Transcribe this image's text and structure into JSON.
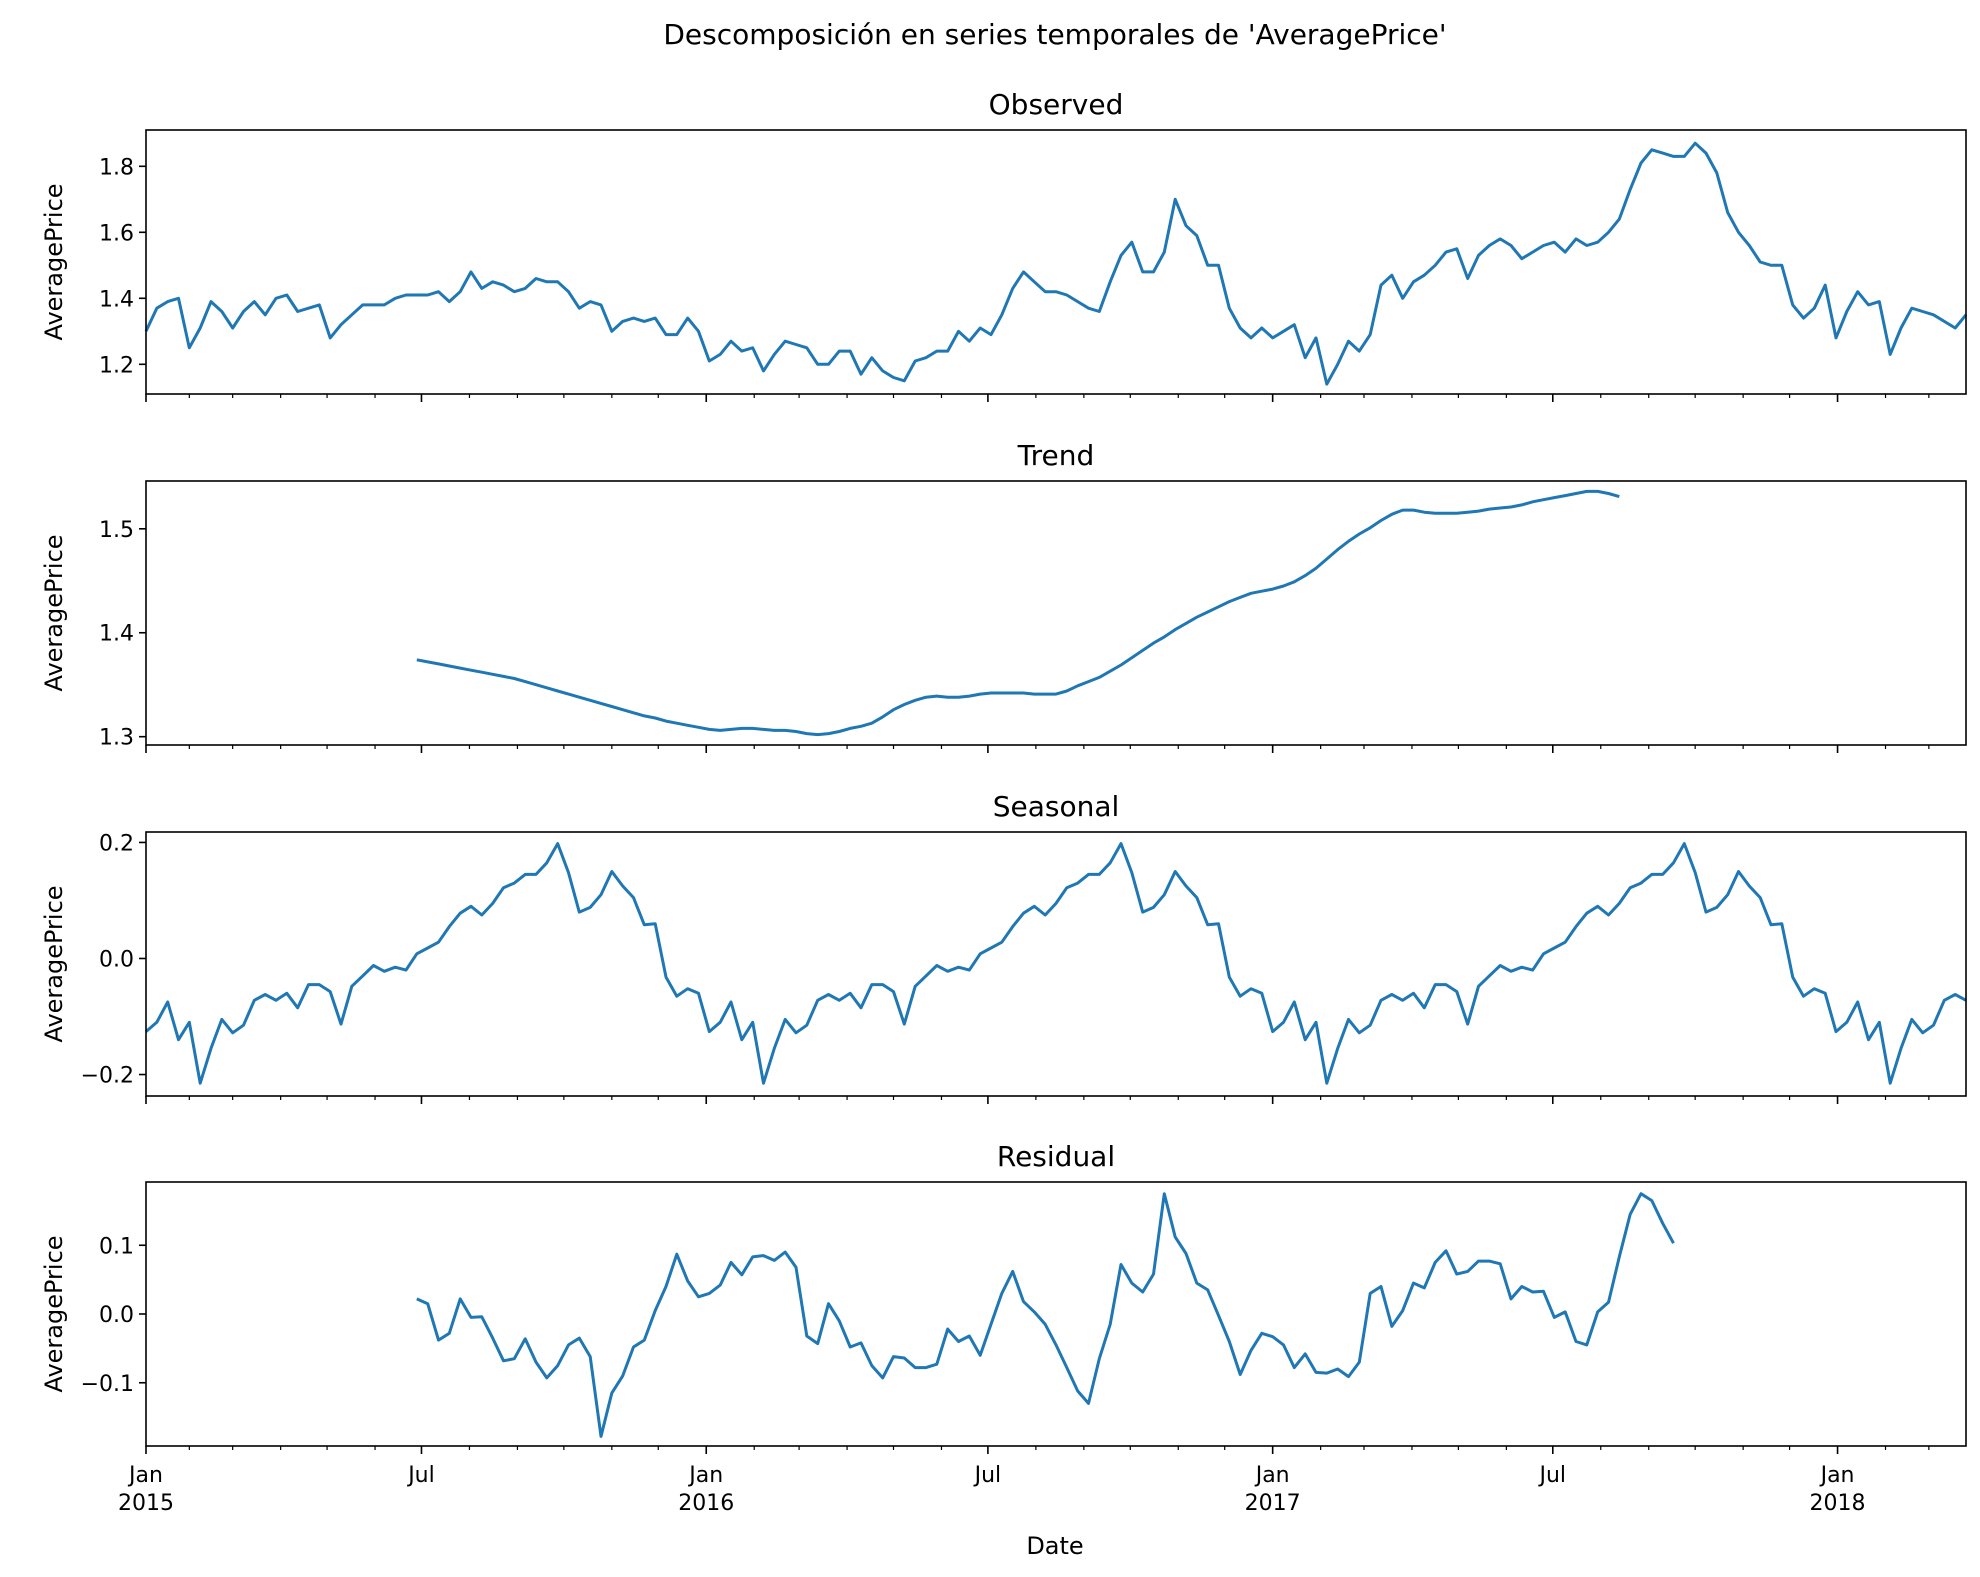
{
  "figure": {
    "suptitle": "Descomposición en series temporales de 'AveragePrice'",
    "xlabel": "Date",
    "line_color": "#1f77b4",
    "x_major_ticks": [
      {
        "date": "2015-01-04",
        "month": "Jan",
        "year": "2015"
      },
      {
        "date": "2015-07-01",
        "month": "Jul",
        "year": ""
      },
      {
        "date": "2016-01-01",
        "month": "Jan",
        "year": "2016"
      },
      {
        "date": "2016-07-01",
        "month": "Jul",
        "year": ""
      },
      {
        "date": "2017-01-01",
        "month": "Jan",
        "year": "2017"
      },
      {
        "date": "2017-07-01",
        "month": "Jul",
        "year": ""
      },
      {
        "date": "2018-01-01",
        "month": "Jan",
        "year": "2018"
      }
    ],
    "x_minor_ticks": [
      "2015-02-01",
      "2015-03-01",
      "2015-04-01",
      "2015-05-01",
      "2015-06-01",
      "2015-08-01",
      "2015-09-01",
      "2015-10-01",
      "2015-11-01",
      "2015-12-01",
      "2016-02-01",
      "2016-03-01",
      "2016-04-01",
      "2016-05-01",
      "2016-06-01",
      "2016-08-01",
      "2016-09-01",
      "2016-10-01",
      "2016-11-01",
      "2016-12-01",
      "2017-02-01",
      "2017-03-01",
      "2017-04-01",
      "2017-05-01",
      "2017-06-01",
      "2017-08-01",
      "2017-09-01",
      "2017-10-01",
      "2017-11-01",
      "2017-12-01",
      "2018-02-01",
      "2018-03-01"
    ]
  },
  "chart_data": [
    {
      "type": "line",
      "title": "Observed",
      "ylabel": "AveragePrice",
      "xlim": [
        "2015-01-04",
        "2018-03-25"
      ],
      "ylim": [
        1.11,
        1.91
      ],
      "yticks": [
        1.2,
        1.4,
        1.6,
        1.8
      ],
      "ytick_labels": [
        "1.2",
        "1.4",
        "1.6",
        "1.8"
      ],
      "show_x_tick_labels": false,
      "series": [
        {
          "start": "2015-01-04",
          "step_days": 7,
          "values": [
            1.3,
            1.37,
            1.39,
            1.4,
            1.25,
            1.31,
            1.39,
            1.36,
            1.31,
            1.36,
            1.39,
            1.35,
            1.4,
            1.41,
            1.36,
            1.37,
            1.38,
            1.28,
            1.32,
            1.35,
            1.38,
            1.38,
            1.38,
            1.4,
            1.41,
            1.41,
            1.41,
            1.42,
            1.39,
            1.42,
            1.48,
            1.43,
            1.45,
            1.44,
            1.42,
            1.43,
            1.46,
            1.45,
            1.45,
            1.42,
            1.37,
            1.39,
            1.38,
            1.3,
            1.33,
            1.34,
            1.33,
            1.34,
            1.29,
            1.29,
            1.34,
            1.3,
            1.21,
            1.23,
            1.27,
            1.24,
            1.25,
            1.18,
            1.23,
            1.27,
            1.26,
            1.25,
            1.2,
            1.2,
            1.24,
            1.24,
            1.17,
            1.22,
            1.18,
            1.16,
            1.15,
            1.21,
            1.22,
            1.24,
            1.24,
            1.3,
            1.27,
            1.31,
            1.29,
            1.35,
            1.43,
            1.48,
            1.45,
            1.42,
            1.42,
            1.41,
            1.39,
            1.37,
            1.36,
            1.45,
            1.53,
            1.57,
            1.48,
            1.48,
            1.54,
            1.7,
            1.62,
            1.59,
            1.5,
            1.5,
            1.37,
            1.31,
            1.28,
            1.31,
            1.28,
            1.3,
            1.32,
            1.22,
            1.28,
            1.14,
            1.2,
            1.27,
            1.24,
            1.29,
            1.44,
            1.47,
            1.4,
            1.45,
            1.47,
            1.5,
            1.54,
            1.55,
            1.46,
            1.53,
            1.56,
            1.58,
            1.56,
            1.52,
            1.54,
            1.56,
            1.57,
            1.54,
            1.58,
            1.56,
            1.57,
            1.6,
            1.64,
            1.73,
            1.81,
            1.85,
            1.84,
            1.83,
            1.83,
            1.87,
            1.84,
            1.78,
            1.66,
            1.6,
            1.56,
            1.51,
            1.5,
            1.5,
            1.38,
            1.34,
            1.37,
            1.44,
            1.28,
            1.36,
            1.42,
            1.38,
            1.39,
            1.23,
            1.31,
            1.37,
            1.36,
            1.35,
            1.33,
            1.31,
            1.35
          ]
        }
      ]
    },
    {
      "type": "line",
      "title": "Trend",
      "ylabel": "AveragePrice",
      "xlim": [
        "2015-01-04",
        "2018-03-25"
      ],
      "ylim": [
        1.292,
        1.546
      ],
      "yticks": [
        1.3,
        1.4,
        1.5
      ],
      "ytick_labels": [
        "1.3",
        "1.4",
        "1.5"
      ],
      "show_x_tick_labels": false,
      "series": [
        {
          "start": "2015-06-28",
          "step_days": 7,
          "values": [
            1.374,
            1.372,
            1.37,
            1.368,
            1.366,
            1.364,
            1.362,
            1.36,
            1.358,
            1.356,
            1.353,
            1.35,
            1.347,
            1.344,
            1.341,
            1.338,
            1.335,
            1.332,
            1.329,
            1.326,
            1.323,
            1.32,
            1.318,
            1.315,
            1.313,
            1.311,
            1.309,
            1.307,
            1.306,
            1.307,
            1.308,
            1.308,
            1.307,
            1.306,
            1.306,
            1.305,
            1.303,
            1.302,
            1.303,
            1.305,
            1.308,
            1.31,
            1.313,
            1.319,
            1.326,
            1.331,
            1.335,
            1.338,
            1.339,
            1.338,
            1.338,
            1.339,
            1.341,
            1.342,
            1.342,
            1.342,
            1.342,
            1.341,
            1.341,
            1.341,
            1.344,
            1.349,
            1.353,
            1.357,
            1.363,
            1.369,
            1.376,
            1.383,
            1.39,
            1.396,
            1.403,
            1.409,
            1.415,
            1.42,
            1.425,
            1.43,
            1.434,
            1.438,
            1.44,
            1.442,
            1.445,
            1.449,
            1.455,
            1.462,
            1.471,
            1.48,
            1.488,
            1.495,
            1.501,
            1.508,
            1.514,
            1.518,
            1.518,
            1.516,
            1.515,
            1.515,
            1.515,
            1.516,
            1.517,
            1.519,
            1.52,
            1.521,
            1.523,
            1.526,
            1.528,
            1.53,
            1.532,
            1.534,
            1.536,
            1.536,
            1.534,
            1.531
          ]
        }
      ]
    },
    {
      "type": "line",
      "title": "Seasonal",
      "ylabel": "AveragePrice",
      "xlim": [
        "2015-01-04",
        "2018-03-25"
      ],
      "ylim": [
        -0.237,
        0.218
      ],
      "yticks": [
        -0.2,
        0.0,
        0.2
      ],
      "ytick_labels": [
        "−0.2",
        "0.0",
        "0.2"
      ],
      "show_x_tick_labels": false,
      "series": [
        {
          "start": "2015-01-04",
          "step_days": 7,
          "pattern_repeat": 52,
          "values": [
            -0.126,
            -0.11,
            -0.075,
            -0.14,
            -0.11,
            -0.215,
            -0.155,
            -0.105,
            -0.128,
            -0.115,
            -0.072,
            -0.062,
            -0.072,
            -0.06,
            -0.085,
            -0.045,
            -0.045,
            -0.057,
            -0.113,
            -0.048,
            -0.03,
            -0.012,
            -0.022,
            -0.015,
            -0.02,
            0.008,
            0.018,
            0.028,
            0.055,
            0.078,
            0.09,
            0.075,
            0.095,
            0.122,
            0.13,
            0.145,
            0.145,
            0.165,
            0.198,
            0.148,
            0.08,
            0.088,
            0.11,
            0.15,
            0.125,
            0.105,
            0.058,
            0.06,
            -0.032,
            -0.065,
            -0.052,
            -0.06
          ]
        }
      ]
    },
    {
      "type": "line",
      "title": "Residual",
      "ylabel": "AveragePrice",
      "xlim": [
        "2015-01-04",
        "2018-03-25"
      ],
      "ylim": [
        -0.192,
        0.192
      ],
      "yticks": [
        -0.1,
        0.0,
        0.1
      ],
      "ytick_labels": [
        "−0.1",
        "0.0",
        "0.1"
      ],
      "show_x_tick_labels": true,
      "series": [
        {
          "start": "2015-06-28",
          "step_days": 7,
          "values": [
            0.022,
            0.015,
            -0.038,
            -0.028,
            0.022,
            -0.005,
            -0.004,
            -0.035,
            -0.068,
            -0.065,
            -0.036,
            -0.07,
            -0.093,
            -0.075,
            -0.045,
            -0.035,
            -0.062,
            -0.178,
            -0.115,
            -0.09,
            -0.048,
            -0.038,
            0.005,
            0.04,
            0.087,
            0.048,
            0.025,
            0.03,
            0.042,
            0.075,
            0.057,
            0.083,
            0.085,
            0.078,
            0.09,
            0.068,
            -0.032,
            -0.043,
            0.015,
            -0.01,
            -0.048,
            -0.042,
            -0.075,
            -0.093,
            -0.062,
            -0.064,
            -0.078,
            -0.078,
            -0.073,
            -0.022,
            -0.04,
            -0.032,
            -0.06,
            -0.015,
            0.03,
            0.062,
            0.018,
            0.003,
            -0.015,
            -0.045,
            -0.078,
            -0.112,
            -0.13,
            -0.065,
            -0.015,
            0.072,
            0.045,
            0.032,
            0.058,
            0.175,
            0.112,
            0.088,
            0.045,
            0.035,
            -0.002,
            -0.04,
            -0.088,
            -0.053,
            -0.028,
            -0.033,
            -0.045,
            -0.078,
            -0.058,
            -0.085,
            -0.086,
            -0.08,
            -0.091,
            -0.07,
            0.03,
            0.04,
            -0.018,
            0.005,
            0.045,
            0.038,
            0.075,
            0.092,
            0.058,
            0.062,
            0.077,
            0.077,
            0.073,
            0.022,
            0.04,
            0.032,
            0.033,
            -0.005,
            0.003,
            -0.04,
            -0.045,
            0.003,
            0.017,
            0.083,
            0.145,
            0.175,
            0.165,
            0.132,
            0.103
          ]
        }
      ]
    }
  ]
}
